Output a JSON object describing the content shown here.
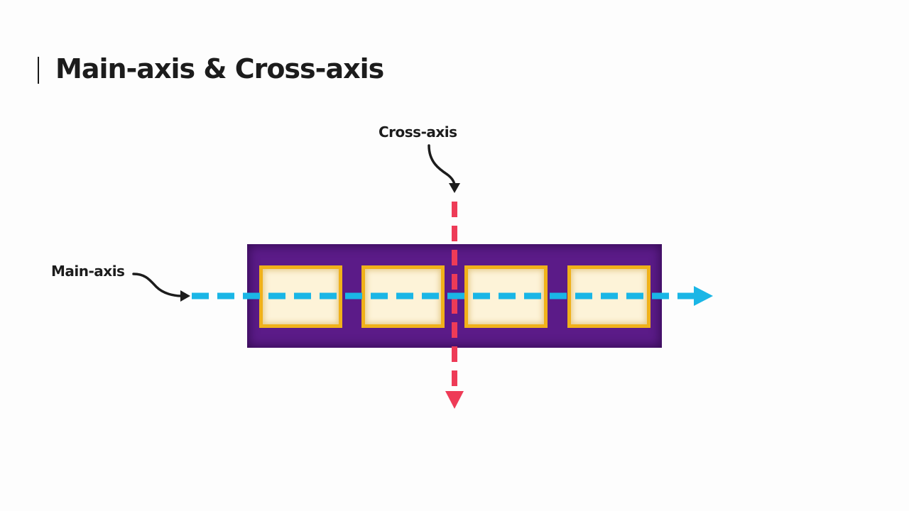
{
  "slide": {
    "title": "Main-axis & Cross-axis"
  },
  "labels": {
    "cross_axis": "Cross-axis",
    "main_axis": "Main-axis"
  },
  "flex_container": {
    "item_count": 4
  },
  "colors": {
    "container": "#5b1b88",
    "item_border": "#f0b11a",
    "item_fill": "#fdf3d8",
    "main_axis": "#1ab6e6",
    "cross_axis": "#ee3b57",
    "pointer_arrow": "#1c1c1c"
  }
}
